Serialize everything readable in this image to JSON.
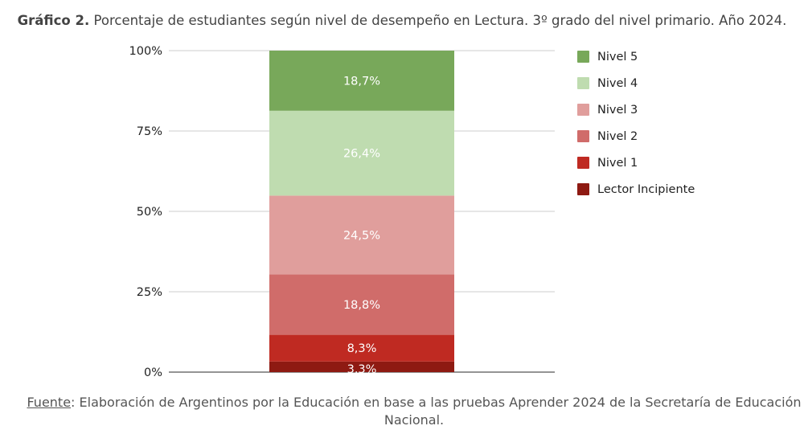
{
  "title": {
    "bold": "Gráfico 2.",
    "text": "Porcentaje de estudiantes según nivel de desempeño en Lectura. 3º grado del nivel primario. Año 2024."
  },
  "source": {
    "label": "Fuente",
    "text": ": Elaboración de Argentinos por la Educación en base a las pruebas Aprender 2024 de la Secretaría de Educación Nacional."
  },
  "chart_data": {
    "type": "bar",
    "stacked": true,
    "categories": [
      ""
    ],
    "ylim": [
      0,
      100
    ],
    "yticks": [
      "0%",
      "25%",
      "50%",
      "75%",
      "100%"
    ],
    "grid": true,
    "legend_position": "right",
    "series": [
      {
        "name": "Lector Incipiente",
        "values": [
          3.3
        ],
        "label": "3,3%",
        "color": "#8e1a12"
      },
      {
        "name": "Nivel 1",
        "values": [
          8.3
        ],
        "label": "8,3%",
        "color": "#bf2a22"
      },
      {
        "name": "Nivel 2",
        "values": [
          18.8
        ],
        "label": "18,8%",
        "color": "#d06c6a"
      },
      {
        "name": "Nivel 3",
        "values": [
          24.5
        ],
        "label": "24,5%",
        "color": "#e09e9c"
      },
      {
        "name": "Nivel 4",
        "values": [
          26.4
        ],
        "label": "26,4%",
        "color": "#bfdcb0"
      },
      {
        "name": "Nivel 5",
        "values": [
          18.7
        ],
        "label": "18,7%",
        "color": "#78a85a"
      }
    ]
  }
}
